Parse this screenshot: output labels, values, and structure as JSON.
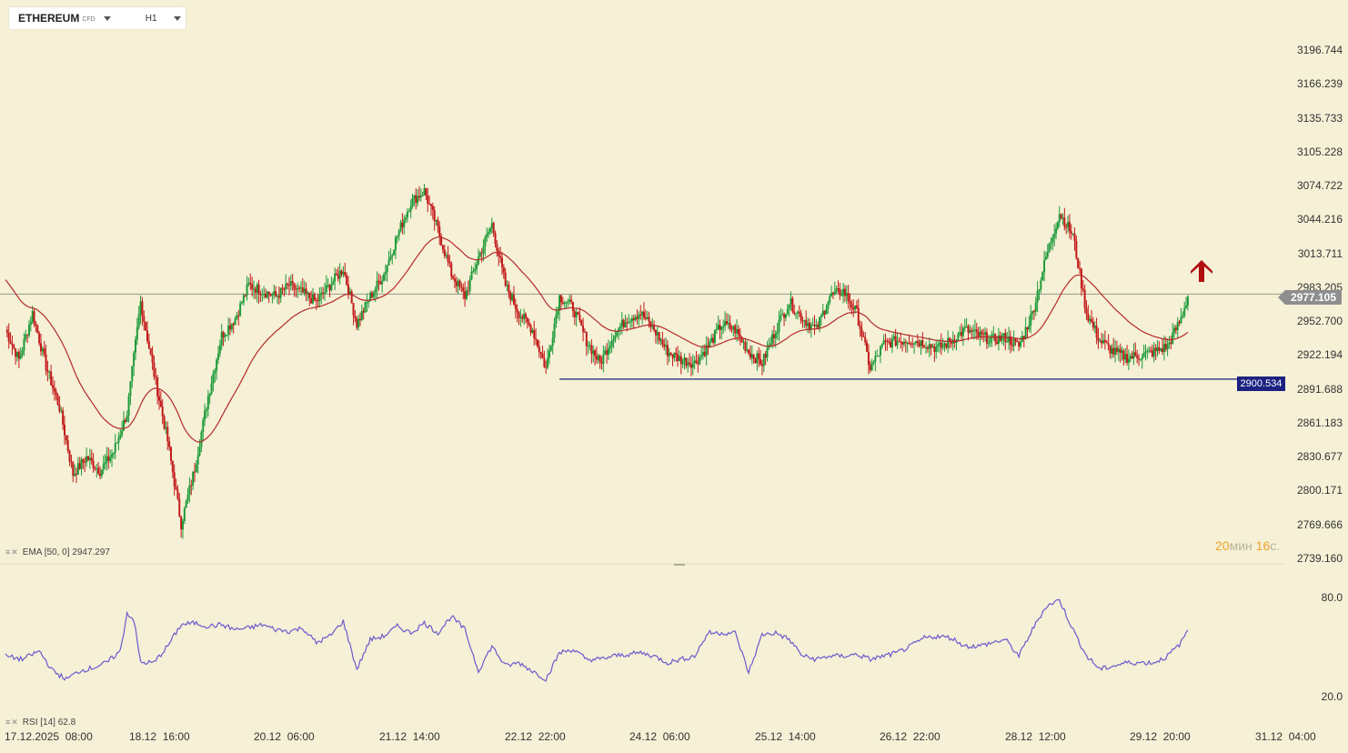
{
  "header": {
    "symbol": "ETHEREUM",
    "symbol_badge": "CFD",
    "timeframe": "H1"
  },
  "chart_data": {
    "type": "candlestick",
    "price_axis_ticks": [
      "3196.744",
      "3166.239",
      "3135.733",
      "3105.228",
      "3074.722",
      "3044.216",
      "3013.711",
      "2983.205",
      "2952.700",
      "2922.194",
      "2891.688",
      "2861.183",
      "2830.677",
      "2800.171",
      "2769.666",
      "2739.160"
    ],
    "time_axis_ticks": [
      "17.12.2025  08:00",
      "18.12  16:00",
      "20.12  06:00",
      "21.12  14:00",
      "22.12  22:00",
      "24.12  06:00",
      "25.12  14:00",
      "26.12  22:00",
      "28.12  12:00",
      "29.12  20:00",
      "31.12  04:00"
    ],
    "current_price": "2977.105",
    "horizontal_line_price": "2900.534",
    "ylim": [
      2739.16,
      3196.744
    ],
    "ema": {
      "label": "EMA [50, 0]",
      "value": "2947.297",
      "color": "#b52a2a"
    },
    "rsi": {
      "label": "RSI [14]",
      "value": "62.8",
      "levels": [
        "80.0",
        "20.0"
      ],
      "color": "#6a5acd",
      "ylim": [
        20,
        80
      ]
    },
    "up_color": "#1e9b3a",
    "down_color": "#c21a1a",
    "timer": {
      "min": "20",
      "min_unit": "мин",
      "sec": "16",
      "sec_unit": "с."
    },
    "signal": "up-arrow",
    "anchors": [
      [
        0,
        2945
      ],
      [
        8,
        2918
      ],
      [
        16,
        2960
      ],
      [
        24,
        2912
      ],
      [
        32,
        2875
      ],
      [
        40,
        2815
      ],
      [
        48,
        2830
      ],
      [
        56,
        2818
      ],
      [
        64,
        2835
      ],
      [
        72,
        2870
      ],
      [
        80,
        2970
      ],
      [
        88,
        2905
      ],
      [
        96,
        2845
      ],
      [
        104,
        2770
      ],
      [
        112,
        2820
      ],
      [
        120,
        2885
      ],
      [
        128,
        2940
      ],
      [
        136,
        2955
      ],
      [
        144,
        2985
      ],
      [
        152,
        2980
      ],
      [
        160,
        2975
      ],
      [
        168,
        2985
      ],
      [
        176,
        2978
      ],
      [
        184,
        2970
      ],
      [
        192,
        2985
      ],
      [
        200,
        3000
      ],
      [
        208,
        2950
      ],
      [
        216,
        2975
      ],
      [
        224,
        2995
      ],
      [
        232,
        3030
      ],
      [
        240,
        3060
      ],
      [
        248,
        3070
      ],
      [
        256,
        3035
      ],
      [
        264,
        2995
      ],
      [
        272,
        2975
      ],
      [
        280,
        3010
      ],
      [
        288,
        3040
      ],
      [
        296,
        2985
      ],
      [
        304,
        2960
      ],
      [
        312,
        2945
      ],
      [
        320,
        2910
      ],
      [
        328,
        2975
      ],
      [
        336,
        2965
      ],
      [
        344,
        2935
      ],
      [
        352,
        2915
      ],
      [
        360,
        2940
      ],
      [
        368,
        2955
      ],
      [
        376,
        2960
      ],
      [
        384,
        2945
      ],
      [
        392,
        2925
      ],
      [
        400,
        2918
      ],
      [
        408,
        2915
      ],
      [
        416,
        2930
      ],
      [
        424,
        2950
      ],
      [
        432,
        2945
      ],
      [
        440,
        2925
      ],
      [
        448,
        2915
      ],
      [
        456,
        2945
      ],
      [
        464,
        2970
      ],
      [
        472,
        2955
      ],
      [
        480,
        2945
      ],
      [
        488,
        2975
      ],
      [
        496,
        2980
      ],
      [
        504,
        2960
      ],
      [
        512,
        2910
      ],
      [
        520,
        2932
      ],
      [
        528,
        2935
      ],
      [
        536,
        2936
      ],
      [
        544,
        2933
      ],
      [
        552,
        2928
      ],
      [
        560,
        2935
      ],
      [
        568,
        2945
      ],
      [
        576,
        2940
      ],
      [
        584,
        2936
      ],
      [
        592,
        2938
      ],
      [
        600,
        2930
      ],
      [
        608,
        2960
      ],
      [
        616,
        3010
      ],
      [
        624,
        3050
      ],
      [
        632,
        3030
      ],
      [
        640,
        2960
      ],
      [
        648,
        2935
      ],
      [
        656,
        2925
      ],
      [
        664,
        2920
      ],
      [
        672,
        2922
      ],
      [
        680,
        2925
      ],
      [
        688,
        2930
      ],
      [
        696,
        2955
      ],
      [
        700,
        2975
      ]
    ],
    "rsi_anchors": [
      [
        0,
        44
      ],
      [
        10,
        42
      ],
      [
        20,
        47
      ],
      [
        28,
        35
      ],
      [
        36,
        30
      ],
      [
        44,
        35
      ],
      [
        52,
        37
      ],
      [
        60,
        40
      ],
      [
        68,
        47
      ],
      [
        72,
        70
      ],
      [
        76,
        66
      ],
      [
        80,
        40
      ],
      [
        88,
        40
      ],
      [
        96,
        50
      ],
      [
        104,
        63
      ],
      [
        112,
        64
      ],
      [
        120,
        62
      ],
      [
        128,
        63
      ],
      [
        136,
        60
      ],
      [
        144,
        61
      ],
      [
        152,
        63
      ],
      [
        160,
        60
      ],
      [
        168,
        59
      ],
      [
        176,
        61
      ],
      [
        184,
        52
      ],
      [
        192,
        56
      ],
      [
        200,
        65
      ],
      [
        208,
        36
      ],
      [
        216,
        54
      ],
      [
        224,
        56
      ],
      [
        232,
        62
      ],
      [
        240,
        58
      ],
      [
        248,
        64
      ],
      [
        256,
        58
      ],
      [
        264,
        68
      ],
      [
        272,
        60
      ],
      [
        280,
        35
      ],
      [
        288,
        50
      ],
      [
        296,
        38
      ],
      [
        304,
        40
      ],
      [
        312,
        35
      ],
      [
        320,
        30
      ],
      [
        328,
        46
      ],
      [
        336,
        48
      ],
      [
        344,
        42
      ],
      [
        352,
        42
      ],
      [
        360,
        44
      ],
      [
        368,
        45
      ],
      [
        376,
        46
      ],
      [
        384,
        44
      ],
      [
        392,
        40
      ],
      [
        400,
        42
      ],
      [
        408,
        44
      ],
      [
        416,
        58
      ],
      [
        424,
        58
      ],
      [
        432,
        58
      ],
      [
        440,
        34
      ],
      [
        448,
        57
      ],
      [
        456,
        58
      ],
      [
        464,
        54
      ],
      [
        472,
        44
      ],
      [
        480,
        42
      ],
      [
        488,
        44
      ],
      [
        496,
        44
      ],
      [
        504,
        45
      ],
      [
        512,
        42
      ],
      [
        520,
        44
      ],
      [
        528,
        46
      ],
      [
        536,
        50
      ],
      [
        544,
        55
      ],
      [
        552,
        56
      ],
      [
        560,
        55
      ],
      [
        568,
        50
      ],
      [
        576,
        50
      ],
      [
        584,
        52
      ],
      [
        592,
        54
      ],
      [
        600,
        44
      ],
      [
        608,
        60
      ],
      [
        616,
        74
      ],
      [
        624,
        78
      ],
      [
        632,
        60
      ],
      [
        640,
        44
      ],
      [
        648,
        36
      ],
      [
        656,
        38
      ],
      [
        664,
        40
      ],
      [
        672,
        40
      ],
      [
        680,
        40
      ],
      [
        688,
        44
      ],
      [
        696,
        52
      ],
      [
        700,
        60
      ]
    ]
  }
}
